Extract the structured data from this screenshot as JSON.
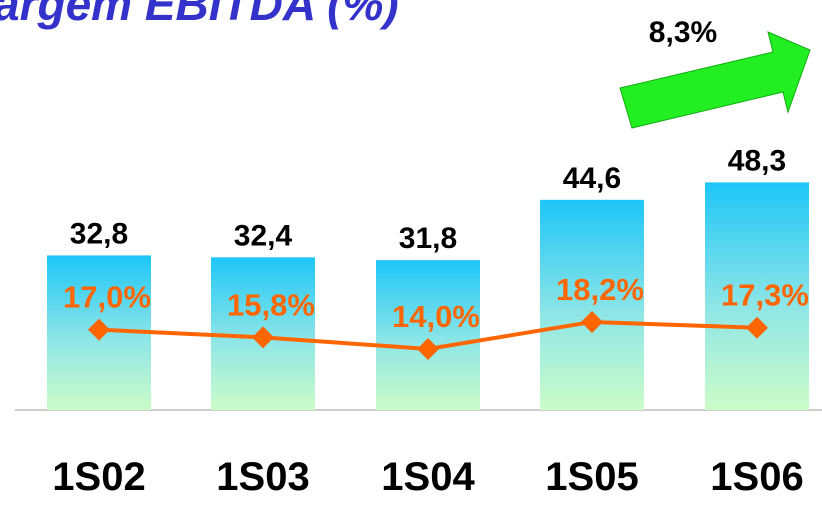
{
  "chart_data": {
    "type": "bar_line",
    "title": "argem EBITDA (%)",
    "annotation": "8,3%",
    "categories": [
      "1S02",
      "1S03",
      "1S04",
      "1S05",
      "1S06"
    ],
    "ylim": [
      0,
      87
    ],
    "y2lim": [
      4.5,
      68.3
    ],
    "series": [
      {
        "name": null,
        "type": "bar",
        "color": "#22c8f6",
        "values": [
          32.8,
          32.4,
          31.8,
          44.6,
          48.3
        ],
        "value_labels": [
          "32,8",
          "32,4",
          "31,8",
          "44,6",
          "48,3"
        ]
      },
      {
        "name": null,
        "type": "line",
        "axis": "y2",
        "color": "#ff6600",
        "values": [
          17.0,
          15.8,
          14.0,
          18.2,
          17.3
        ],
        "value_labels": [
          "17,0%",
          "15,8%",
          "14,0%",
          "18,2%",
          "17,3%"
        ]
      }
    ]
  }
}
